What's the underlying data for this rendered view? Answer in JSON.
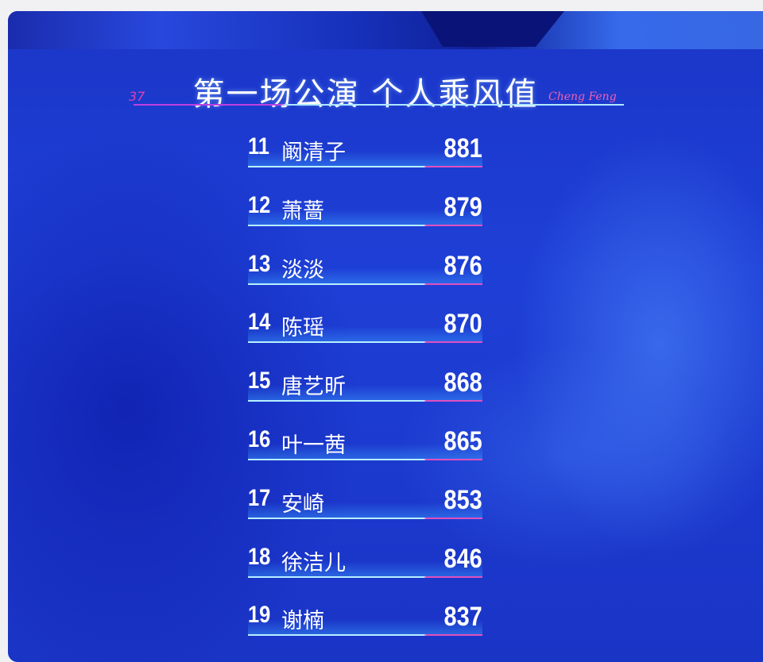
{
  "title": "第一场公演 个人乘风值",
  "decor": {
    "left_mark": "37",
    "right_script": "Cheng Feng"
  },
  "colors": {
    "background": "#1e3fd6",
    "accent_pink": "#e050c0",
    "accent_cyan": "#b8f0ff"
  },
  "rankings": [
    {
      "rank": "11",
      "name": "阚清子",
      "score": "881"
    },
    {
      "rank": "12",
      "name": "萧蔷",
      "score": "879"
    },
    {
      "rank": "13",
      "name": "淡淡",
      "score": "876"
    },
    {
      "rank": "14",
      "name": "陈瑶",
      "score": "870"
    },
    {
      "rank": "15",
      "name": "唐艺昕",
      "score": "868"
    },
    {
      "rank": "16",
      "name": "叶一茜",
      "score": "865"
    },
    {
      "rank": "17",
      "name": "安崎",
      "score": "853"
    },
    {
      "rank": "18",
      "name": "徐洁儿",
      "score": "846"
    },
    {
      "rank": "19",
      "name": "谢楠",
      "score": "837"
    }
  ]
}
